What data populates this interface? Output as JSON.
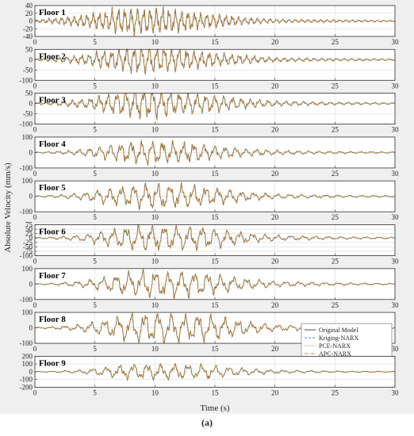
{
  "caption": "(a)",
  "colors": {
    "background": "#efefef",
    "plot_bg": "#ffffff",
    "original": "#4a4a4a",
    "kriging": "#3f8fd6",
    "pce": "#6b9a2e",
    "apc": "#e07b1f"
  },
  "chart_data": {
    "type": "line",
    "xlabel": "Time (s)",
    "ylabel": "Absolute Velocity (mm/s)",
    "xlim": [
      0,
      30
    ],
    "xticks": [
      0,
      5,
      10,
      15,
      20,
      25,
      30
    ],
    "grid": true,
    "legend": {
      "placement": "bottom-right, inside Floor 8 panel",
      "entries": [
        "Original Model",
        "Kriging-NARX",
        "PCE-NARX",
        "APC-NARX"
      ]
    },
    "series_names": [
      "Original Model",
      "Kriging-NARX",
      "PCE-NARX",
      "APC-NARX"
    ],
    "panels": [
      {
        "label": "Floor 1",
        "ylim": [
          -40,
          40
        ],
        "yticks": [
          -40,
          -20,
          0,
          20,
          40
        ],
        "peak": 38,
        "env": [
          [
            0,
            0.08
          ],
          [
            2,
            0.25
          ],
          [
            4,
            0.45
          ],
          [
            6,
            0.75
          ],
          [
            7,
            0.95
          ],
          [
            8,
            1.0
          ],
          [
            10,
            1.0
          ],
          [
            12,
            0.85
          ],
          [
            14,
            0.6
          ],
          [
            16,
            0.42
          ],
          [
            18,
            0.25
          ],
          [
            20,
            0.15
          ],
          [
            25,
            0.1
          ],
          [
            30,
            0.06
          ]
        ],
        "freq": 1.9
      },
      {
        "label": "Floor 2",
        "ylim": [
          -100,
          50
        ],
        "yticks": [
          -100,
          -50,
          0,
          50
        ],
        "peak": 72,
        "env": [
          [
            0,
            0.06
          ],
          [
            2,
            0.18
          ],
          [
            4,
            0.35
          ],
          [
            6,
            0.7
          ],
          [
            8,
            0.95
          ],
          [
            10,
            1.0
          ],
          [
            12,
            0.8
          ],
          [
            14,
            0.6
          ],
          [
            16,
            0.42
          ],
          [
            18,
            0.28
          ],
          [
            20,
            0.16
          ],
          [
            25,
            0.1
          ],
          [
            30,
            0.06
          ]
        ],
        "freq": 1.6
      },
      {
        "label": "Floor 3",
        "ylim": [
          -100,
          50
        ],
        "yticks": [
          -100,
          -50,
          0,
          50
        ],
        "peak": 78,
        "env": [
          [
            0,
            0.05
          ],
          [
            2,
            0.15
          ],
          [
            4,
            0.3
          ],
          [
            6,
            0.65
          ],
          [
            8,
            0.95
          ],
          [
            10,
            1.0
          ],
          [
            12,
            0.8
          ],
          [
            14,
            0.65
          ],
          [
            16,
            0.45
          ],
          [
            18,
            0.3
          ],
          [
            20,
            0.18
          ],
          [
            25,
            0.1
          ],
          [
            30,
            0.06
          ]
        ],
        "freq": 1.35
      },
      {
        "label": "Floor 4",
        "ylim": [
          -100,
          100
        ],
        "yticks": [
          -100,
          0,
          100
        ],
        "peak": 80,
        "env": [
          [
            0,
            0.04
          ],
          [
            2,
            0.12
          ],
          [
            4,
            0.3
          ],
          [
            6,
            0.6
          ],
          [
            8,
            0.95
          ],
          [
            10,
            1.0
          ],
          [
            12,
            0.9
          ],
          [
            14,
            0.75
          ],
          [
            16,
            0.5
          ],
          [
            18,
            0.3
          ],
          [
            20,
            0.2
          ],
          [
            25,
            0.1
          ],
          [
            30,
            0.06
          ]
        ],
        "freq": 1.15
      },
      {
        "label": "Floor 5",
        "ylim": [
          -100,
          100
        ],
        "yticks": [
          -100,
          0,
          100
        ],
        "peak": 88,
        "env": [
          [
            0,
            0.04
          ],
          [
            2,
            0.12
          ],
          [
            4,
            0.28
          ],
          [
            6,
            0.6
          ],
          [
            8,
            0.9
          ],
          [
            10,
            1.0
          ],
          [
            12,
            0.92
          ],
          [
            14,
            0.8
          ],
          [
            16,
            0.55
          ],
          [
            18,
            0.32
          ],
          [
            20,
            0.2
          ],
          [
            25,
            0.1
          ],
          [
            30,
            0.06
          ]
        ],
        "freq": 1.0
      },
      {
        "label": "Floor 6",
        "ylim": [
          -100,
          75
        ],
        "yticks": [
          -100,
          -75,
          -50,
          -25,
          0,
          25,
          50,
          75
        ],
        "peak": 80,
        "env": [
          [
            0,
            0.04
          ],
          [
            2,
            0.1
          ],
          [
            4,
            0.25
          ],
          [
            6,
            0.6
          ],
          [
            8,
            0.9
          ],
          [
            10,
            1.0
          ],
          [
            12,
            0.92
          ],
          [
            14,
            0.85
          ],
          [
            16,
            0.6
          ],
          [
            18,
            0.35
          ],
          [
            20,
            0.22
          ],
          [
            25,
            0.1
          ],
          [
            30,
            0.06
          ]
        ],
        "freq": 0.95
      },
      {
        "label": "Floor 7",
        "ylim": [
          -100,
          100
        ],
        "yticks": [
          -100,
          0,
          100
        ],
        "peak": 92,
        "env": [
          [
            0,
            0.03
          ],
          [
            2,
            0.1
          ],
          [
            4,
            0.25
          ],
          [
            6,
            0.55
          ],
          [
            8,
            0.9
          ],
          [
            10,
            1.0
          ],
          [
            12,
            0.95
          ],
          [
            14,
            0.88
          ],
          [
            16,
            0.62
          ],
          [
            18,
            0.38
          ],
          [
            20,
            0.22
          ],
          [
            25,
            0.1
          ],
          [
            30,
            0.06
          ]
        ],
        "freq": 0.92
      },
      {
        "label": "Floor 8",
        "ylim": [
          -100,
          100
        ],
        "yticks": [
          -100,
          0,
          100
        ],
        "peak": 105,
        "env": [
          [
            0,
            0.03
          ],
          [
            2,
            0.1
          ],
          [
            4,
            0.25
          ],
          [
            6,
            0.6
          ],
          [
            8,
            0.95
          ],
          [
            10,
            1.0
          ],
          [
            12,
            0.95
          ],
          [
            14,
            0.9
          ],
          [
            16,
            0.65
          ],
          [
            18,
            0.4
          ],
          [
            20,
            0.22
          ],
          [
            25,
            0.1
          ],
          [
            30,
            0.06
          ]
        ],
        "freq": 0.9
      },
      {
        "label": "Floor 9",
        "ylim": [
          -200,
          200
        ],
        "yticks": [
          -200,
          -100,
          0,
          100,
          200
        ],
        "peak": 110,
        "env": [
          [
            0,
            0.03
          ],
          [
            2,
            0.1
          ],
          [
            4,
            0.25
          ],
          [
            6,
            0.6
          ],
          [
            8,
            0.95
          ],
          [
            10,
            1.0
          ],
          [
            12,
            0.95
          ],
          [
            14,
            0.9
          ],
          [
            16,
            0.65
          ],
          [
            18,
            0.4
          ],
          [
            20,
            0.22
          ],
          [
            25,
            0.1
          ],
          [
            30,
            0.06
          ]
        ],
        "freq": 0.88
      }
    ]
  }
}
